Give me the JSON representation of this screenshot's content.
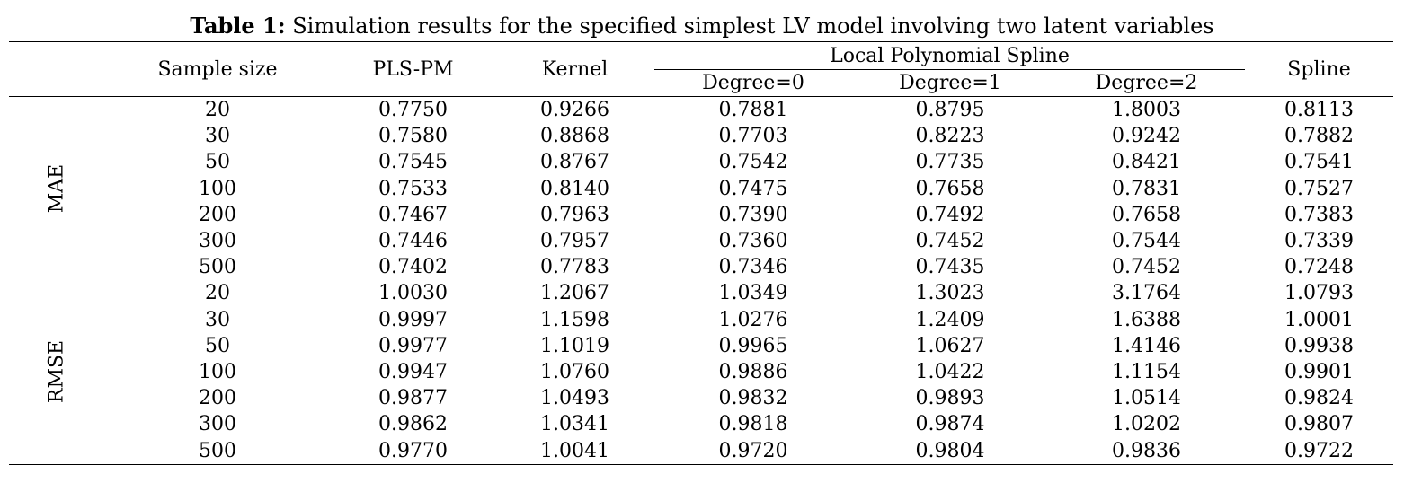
{
  "caption": {
    "label": "Table 1:",
    "text": " Simulation results for the specified simplest LV model involving two latent variables"
  },
  "headers": {
    "sample_size": "Sample size",
    "plspm": "PLS-PM",
    "kernel": "Kernel",
    "lps": "Local Polynomial Spline",
    "deg0": "Degree=0",
    "deg1": "Degree=1",
    "deg2": "Degree=2",
    "spline": "Spline"
  },
  "groups": [
    {
      "label": "MAE",
      "rows": [
        [
          "20",
          "0.7750",
          "0.9266",
          "0.7881",
          "0.8795",
          "1.8003",
          "0.8113"
        ],
        [
          "30",
          "0.7580",
          "0.8868",
          "0.7703",
          "0.8223",
          "0.9242",
          "0.7882"
        ],
        [
          "50",
          "0.7545",
          "0.8767",
          "0.7542",
          "0.7735",
          "0.8421",
          "0.7541"
        ],
        [
          "100",
          "0.7533",
          "0.8140",
          "0.7475",
          "0.7658",
          "0.7831",
          "0.7527"
        ],
        [
          "200",
          "0.7467",
          "0.7963",
          "0.7390",
          "0.7492",
          "0.7658",
          "0.7383"
        ],
        [
          "300",
          "0.7446",
          "0.7957",
          "0.7360",
          "0.7452",
          "0.7544",
          "0.7339"
        ],
        [
          "500",
          "0.7402",
          "0.7783",
          "0.7346",
          "0.7435",
          "0.7452",
          "0.7248"
        ]
      ]
    },
    {
      "label": "RMSE",
      "rows": [
        [
          "20",
          "1.0030",
          "1.2067",
          "1.0349",
          "1.3023",
          "3.1764",
          "1.0793"
        ],
        [
          "30",
          "0.9997",
          "1.1598",
          "1.0276",
          "1.2409",
          "1.6388",
          "1.0001"
        ],
        [
          "50",
          "0.9977",
          "1.1019",
          "0.9965",
          "1.0627",
          "1.4146",
          "0.9938"
        ],
        [
          "100",
          "0.9947",
          "1.0760",
          "0.9886",
          "1.0422",
          "1.1154",
          "0.9901"
        ],
        [
          "200",
          "0.9877",
          "1.0493",
          "0.9832",
          "0.9893",
          "1.0514",
          "0.9824"
        ],
        [
          "300",
          "0.9862",
          "1.0341",
          "0.9818",
          "0.9874",
          "1.0202",
          "0.9807"
        ],
        [
          "500",
          "0.9770",
          "1.0041",
          "0.9720",
          "0.9804",
          "0.9836",
          "0.9722"
        ]
      ]
    }
  ]
}
